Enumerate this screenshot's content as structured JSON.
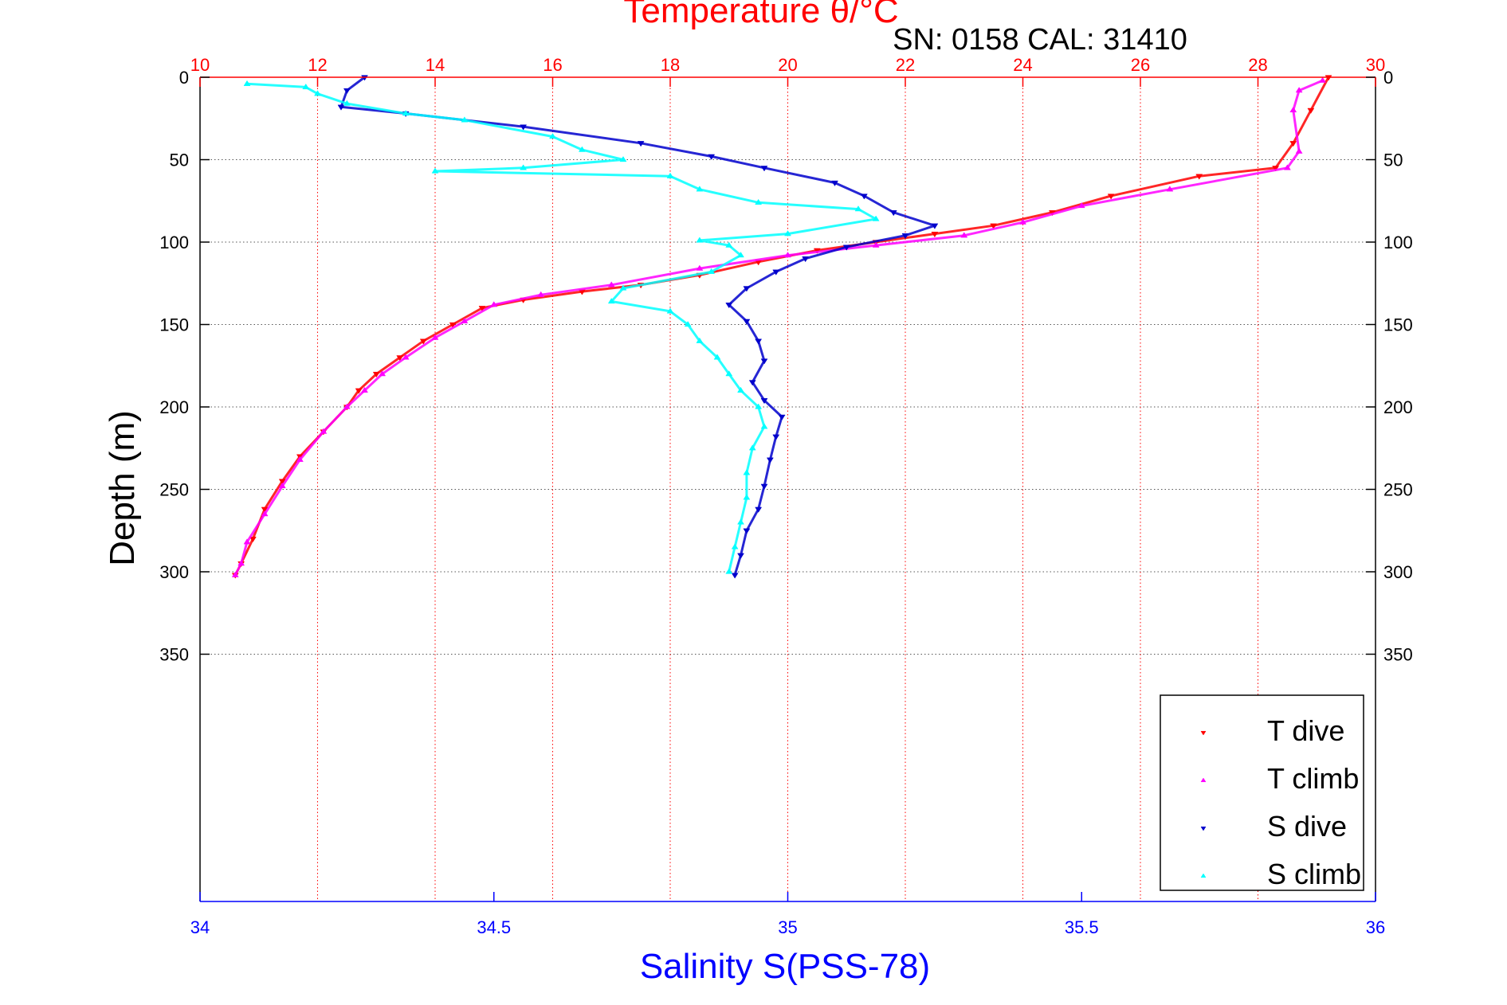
{
  "chart_data": {
    "type": "scatter",
    "title": "Temperature θ/°C",
    "annotation": "SN: 0158  CAL: 31410",
    "ylabel": "Depth (m)",
    "xlabel_bottom": "Salinity S(PSS-78)",
    "y_axis": {
      "range": [
        0,
        500
      ],
      "reversed": true,
      "ticks": [
        0,
        50,
        100,
        150,
        200,
        250,
        300,
        350
      ]
    },
    "x_top": {
      "label": "Temperature θ/°C",
      "range": [
        10,
        30
      ],
      "ticks": [
        10,
        12,
        14,
        16,
        18,
        20,
        22,
        24,
        26,
        28,
        30
      ],
      "color": "#ff0000"
    },
    "x_bottom": {
      "label": "Salinity S(PSS-78)",
      "range": [
        34,
        36
      ],
      "ticks": [
        "34",
        "34.5",
        "35",
        "35.5",
        "36"
      ],
      "tick_values": [
        34,
        34.5,
        35,
        35.5,
        36
      ],
      "color": "#0000ff"
    },
    "grid": true,
    "legend_position": "bottom-right",
    "series": [
      {
        "name": "T dive",
        "axis": "temperature",
        "color": "#ff0000",
        "marker": "triangle-down",
        "points": [
          [
            29.2,
            0
          ],
          [
            28.9,
            20
          ],
          [
            28.6,
            40
          ],
          [
            28.3,
            55
          ],
          [
            27.0,
            60
          ],
          [
            25.5,
            72
          ],
          [
            24.5,
            82
          ],
          [
            23.5,
            90
          ],
          [
            22.5,
            95
          ],
          [
            21.5,
            100
          ],
          [
            20.5,
            105
          ],
          [
            19.5,
            112
          ],
          [
            18.5,
            120
          ],
          [
            17.5,
            126
          ],
          [
            16.5,
            130
          ],
          [
            15.5,
            135
          ],
          [
            14.8,
            140
          ],
          [
            14.3,
            150
          ],
          [
            13.8,
            160
          ],
          [
            13.4,
            170
          ],
          [
            13.0,
            180
          ],
          [
            12.7,
            190
          ],
          [
            12.5,
            200
          ],
          [
            12.1,
            215
          ],
          [
            11.7,
            230
          ],
          [
            11.4,
            245
          ],
          [
            11.1,
            262
          ],
          [
            10.9,
            280
          ],
          [
            10.7,
            295
          ],
          [
            10.6,
            302
          ]
        ]
      },
      {
        "name": "T climb",
        "axis": "temperature",
        "color": "#ff00ff",
        "marker": "triangle-up",
        "points": [
          [
            29.1,
            2
          ],
          [
            28.7,
            8
          ],
          [
            28.6,
            20
          ],
          [
            28.7,
            45
          ],
          [
            28.5,
            55
          ],
          [
            26.5,
            68
          ],
          [
            25.0,
            78
          ],
          [
            24.0,
            88
          ],
          [
            23.0,
            96
          ],
          [
            21.5,
            102
          ],
          [
            20.0,
            108
          ],
          [
            18.5,
            116
          ],
          [
            17.0,
            126
          ],
          [
            15.8,
            132
          ],
          [
            15.0,
            138
          ],
          [
            14.5,
            148
          ],
          [
            14.0,
            158
          ],
          [
            13.5,
            170
          ],
          [
            13.1,
            180
          ],
          [
            12.8,
            190
          ],
          [
            12.5,
            200
          ],
          [
            12.1,
            215
          ],
          [
            11.7,
            232
          ],
          [
            11.4,
            248
          ],
          [
            11.1,
            265
          ],
          [
            10.8,
            282
          ],
          [
            10.7,
            295
          ],
          [
            10.6,
            302
          ]
        ]
      },
      {
        "name": "S dive",
        "axis": "salinity",
        "color": "#0000cc",
        "marker": "triangle-down",
        "points": [
          [
            34.28,
            0
          ],
          [
            34.25,
            8
          ],
          [
            34.24,
            18
          ],
          [
            34.35,
            22
          ],
          [
            34.55,
            30
          ],
          [
            34.75,
            40
          ],
          [
            34.87,
            48
          ],
          [
            34.96,
            55
          ],
          [
            35.08,
            64
          ],
          [
            35.13,
            72
          ],
          [
            35.18,
            82
          ],
          [
            35.25,
            90
          ],
          [
            35.2,
            96
          ],
          [
            35.1,
            103
          ],
          [
            35.03,
            110
          ],
          [
            34.98,
            118
          ],
          [
            34.93,
            128
          ],
          [
            34.9,
            138
          ],
          [
            34.93,
            148
          ],
          [
            34.95,
            160
          ],
          [
            34.96,
            172
          ],
          [
            34.94,
            185
          ],
          [
            34.96,
            196
          ],
          [
            34.99,
            206
          ],
          [
            34.98,
            218
          ],
          [
            34.97,
            232
          ],
          [
            34.96,
            248
          ],
          [
            34.95,
            262
          ],
          [
            34.93,
            275
          ],
          [
            34.92,
            290
          ],
          [
            34.91,
            302
          ]
        ]
      },
      {
        "name": "S climb",
        "axis": "salinity",
        "color": "#00ffff",
        "marker": "triangle-up",
        "points": [
          [
            34.08,
            4
          ],
          [
            34.18,
            6
          ],
          [
            34.2,
            10
          ],
          [
            34.25,
            16
          ],
          [
            34.35,
            22
          ],
          [
            34.45,
            26
          ],
          [
            34.6,
            36
          ],
          [
            34.65,
            44
          ],
          [
            34.72,
            50
          ],
          [
            34.55,
            55
          ],
          [
            34.4,
            57
          ],
          [
            34.8,
            60
          ],
          [
            34.85,
            68
          ],
          [
            34.95,
            76
          ],
          [
            35.12,
            80
          ],
          [
            35.15,
            86
          ],
          [
            35.0,
            95
          ],
          [
            34.85,
            99
          ],
          [
            34.9,
            102
          ],
          [
            34.92,
            108
          ],
          [
            34.87,
            118
          ],
          [
            34.72,
            128
          ],
          [
            34.7,
            136
          ],
          [
            34.8,
            142
          ],
          [
            34.83,
            150
          ],
          [
            34.85,
            160
          ],
          [
            34.88,
            170
          ],
          [
            34.9,
            180
          ],
          [
            34.92,
            190
          ],
          [
            34.95,
            200
          ],
          [
            34.96,
            212
          ],
          [
            34.94,
            225
          ],
          [
            34.93,
            240
          ],
          [
            34.93,
            255
          ],
          [
            34.92,
            270
          ],
          [
            34.91,
            285
          ],
          [
            34.9,
            300
          ]
        ]
      }
    ]
  }
}
